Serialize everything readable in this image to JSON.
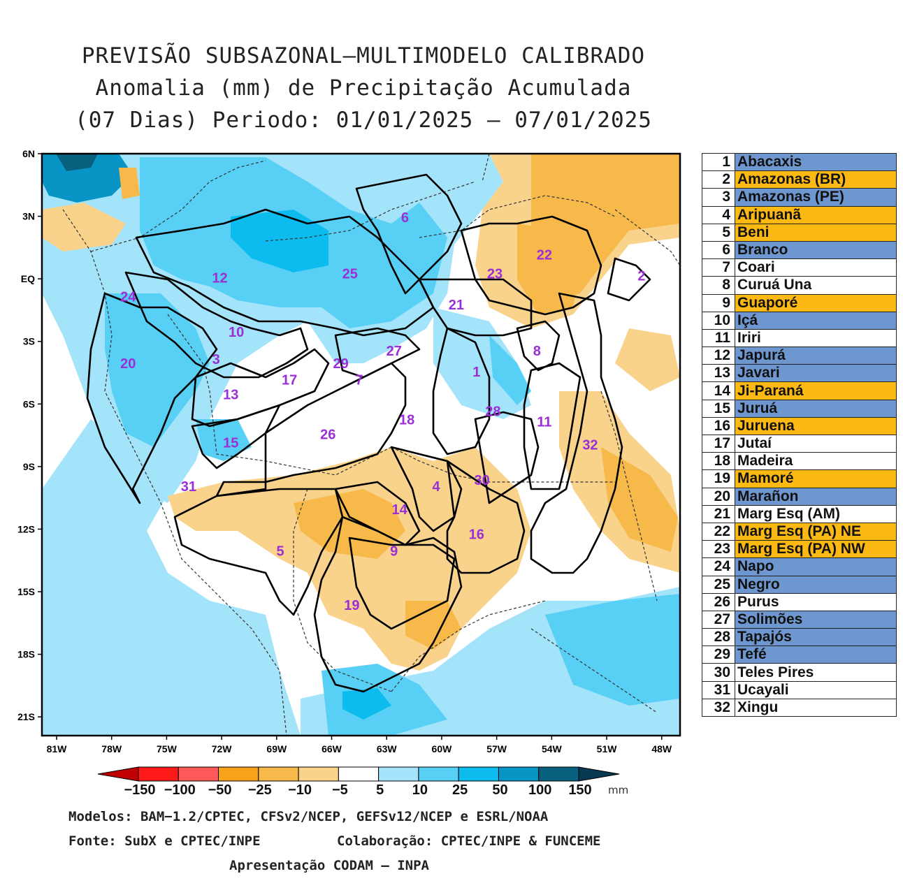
{
  "title": {
    "line1": "PREVISÃO SUBSAZONAL—MULTIMODELO CALIBRADO",
    "line2": "Anomalia (mm) de Precipitação Acumulada",
    "line3": "(07 Dias) Periodo: 01/01/2025 — 07/01/2025"
  },
  "map": {
    "lat_labels": [
      "6N",
      "3N",
      "EQ",
      "3S",
      "6S",
      "9S",
      "12S",
      "15S",
      "18S",
      "21S"
    ],
    "lon_labels": [
      "81W",
      "78W",
      "75W",
      "72W",
      "69W",
      "66W",
      "63W",
      "60W",
      "57W",
      "54W",
      "51W",
      "48W"
    ],
    "basin_labels": [
      {
        "id": "1",
        "lon": -58.1,
        "lat": -4.5
      },
      {
        "id": "2",
        "lon": -49.1,
        "lat": 0.1
      },
      {
        "id": "3",
        "lon": -72.3,
        "lat": -3.9
      },
      {
        "id": "4",
        "lon": -60.3,
        "lat": -10.0
      },
      {
        "id": "5",
        "lon": -68.8,
        "lat": -13.1
      },
      {
        "id": "6",
        "lon": -62.0,
        "lat": 2.9
      },
      {
        "id": "7",
        "lon": -64.5,
        "lat": -4.9
      },
      {
        "id": "8",
        "lon": -54.8,
        "lat": -3.5
      },
      {
        "id": "9",
        "lon": -62.6,
        "lat": -13.1
      },
      {
        "id": "10",
        "lon": -71.2,
        "lat": -2.6
      },
      {
        "id": "11",
        "lon": -54.4,
        "lat": -6.9
      },
      {
        "id": "12",
        "lon": -72.1,
        "lat": 0.0
      },
      {
        "id": "13",
        "lon": -71.5,
        "lat": -5.6
      },
      {
        "id": "14",
        "lon": -62.3,
        "lat": -11.1
      },
      {
        "id": "15",
        "lon": -71.5,
        "lat": -7.9
      },
      {
        "id": "16",
        "lon": -58.1,
        "lat": -12.3
      },
      {
        "id": "17",
        "lon": -68.3,
        "lat": -4.9
      },
      {
        "id": "18",
        "lon": -61.9,
        "lat": -6.8
      },
      {
        "id": "19",
        "lon": -64.9,
        "lat": -15.7
      },
      {
        "id": "20",
        "lon": -77.1,
        "lat": -4.1
      },
      {
        "id": "21",
        "lon": -59.2,
        "lat": -1.3
      },
      {
        "id": "22",
        "lon": -54.4,
        "lat": 1.1
      },
      {
        "id": "23",
        "lon": -57.1,
        "lat": 0.2
      },
      {
        "id": "24",
        "lon": -77.1,
        "lat": -0.9
      },
      {
        "id": "25",
        "lon": -65.0,
        "lat": 0.2
      },
      {
        "id": "26",
        "lon": -66.2,
        "lat": -7.5
      },
      {
        "id": "27",
        "lon": -62.6,
        "lat": -3.5
      },
      {
        "id": "28",
        "lon": -57.2,
        "lat": -6.4
      },
      {
        "id": "29",
        "lon": -65.5,
        "lat": -4.1
      },
      {
        "id": "30",
        "lon": -57.8,
        "lat": -9.7
      },
      {
        "id": "31",
        "lon": -73.8,
        "lat": -10.0
      },
      {
        "id": "32",
        "lon": -51.9,
        "lat": -8.0
      }
    ]
  },
  "basins_table": [
    {
      "num": "1",
      "name": "Abacaxis",
      "color": "#6f97cf"
    },
    {
      "num": "2",
      "name": "Amazonas (BR)",
      "color": "#fdb913"
    },
    {
      "num": "3",
      "name": "Amazonas (PE)",
      "color": "#6f97cf"
    },
    {
      "num": "4",
      "name": "Aripuanã",
      "color": "#fdb913"
    },
    {
      "num": "5",
      "name": "Beni",
      "color": "#fdb913"
    },
    {
      "num": "6",
      "name": "Branco",
      "color": "#6f97cf"
    },
    {
      "num": "7",
      "name": "Coari",
      "color": "#ffffff"
    },
    {
      "num": "8",
      "name": "Curuá Una",
      "color": "#ffffff"
    },
    {
      "num": "9",
      "name": "Guaporé",
      "color": "#fdb913"
    },
    {
      "num": "10",
      "name": "Içá",
      "color": "#6f97cf"
    },
    {
      "num": "11",
      "name": "Iriri",
      "color": "#ffffff"
    },
    {
      "num": "12",
      "name": "Japurá",
      "color": "#6f97cf"
    },
    {
      "num": "13",
      "name": "Javari",
      "color": "#6f97cf"
    },
    {
      "num": "14",
      "name": "Ji-Paraná",
      "color": "#fdb913"
    },
    {
      "num": "15",
      "name": "Juruá",
      "color": "#6f97cf"
    },
    {
      "num": "16",
      "name": "Juruena",
      "color": "#fdb913"
    },
    {
      "num": "17",
      "name": "Jutaí",
      "color": "#ffffff"
    },
    {
      "num": "18",
      "name": "Madeira",
      "color": "#ffffff"
    },
    {
      "num": "19",
      "name": "Mamoré",
      "color": "#fdb913"
    },
    {
      "num": "20",
      "name": "Marañon",
      "color": "#6f97cf"
    },
    {
      "num": "21",
      "name": "Marg Esq (AM)",
      "color": "#ffffff"
    },
    {
      "num": "22",
      "name": "Marg Esq (PA) NE",
      "color": "#fdb913"
    },
    {
      "num": "23",
      "name": "Marg Esq (PA) NW",
      "color": "#fdb913"
    },
    {
      "num": "24",
      "name": "Napo",
      "color": "#6f97cf"
    },
    {
      "num": "25",
      "name": "Negro",
      "color": "#6f97cf"
    },
    {
      "num": "26",
      "name": "Purus",
      "color": "#ffffff"
    },
    {
      "num": "27",
      "name": "Solimões",
      "color": "#6f97cf"
    },
    {
      "num": "28",
      "name": "Tapajós",
      "color": "#6f97cf"
    },
    {
      "num": "29",
      "name": "Tefé",
      "color": "#6f97cf"
    },
    {
      "num": "30",
      "name": "Teles Pires",
      "color": "#ffffff"
    },
    {
      "num": "31",
      "name": "Ucayali",
      "color": "#ffffff"
    },
    {
      "num": "32",
      "name": "Xingu",
      "color": "#ffffff"
    }
  ],
  "colorbar": {
    "labels": [
      "−150",
      "−100",
      "−50",
      "−25",
      "−10",
      "−5",
      "5",
      "10",
      "25",
      "50",
      "100",
      "150"
    ],
    "colors": [
      "#c00000",
      "#ff1a1a",
      "#ff5a5a",
      "#f7a21a",
      "#f7b94a",
      "#f9d28c",
      "#ffffff",
      "#a4e4fb",
      "#58d0f6",
      "#0cbcef",
      "#0894c4",
      "#08607f",
      "#053a52"
    ],
    "unit": "mm"
  },
  "credits": {
    "line1": "Modelos: BAM−1.2/CPTEC, CFSv2/NCEP, GEFSv12/NCEP e ESRL/NOAA",
    "line2a": "Fonte: SubX e CPTEC/INPE",
    "line2b": "Colaboração: CPTEC/INPE & FUNCEME",
    "line3": "Apresentação CODAM — INPA"
  }
}
